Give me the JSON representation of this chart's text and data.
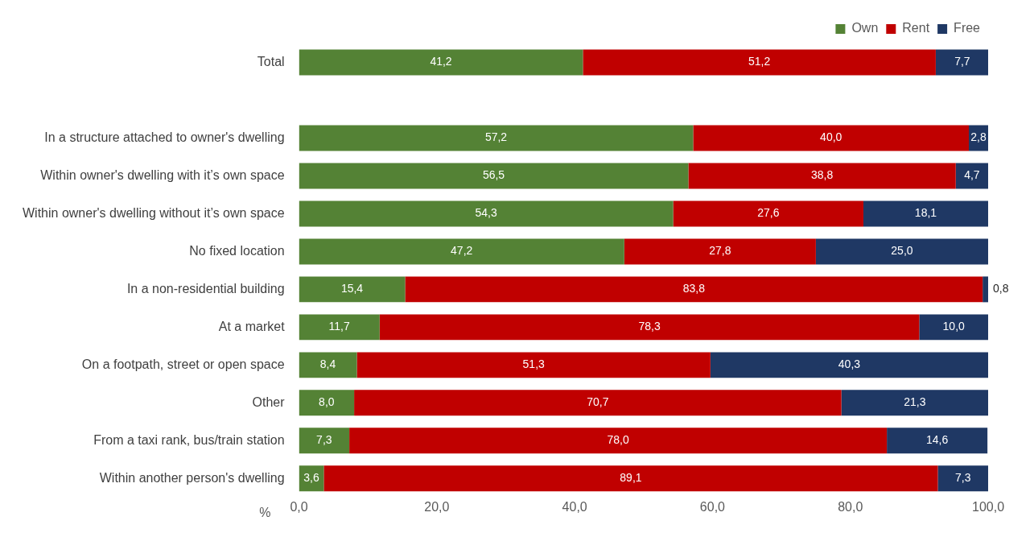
{
  "chart_data": {
    "type": "bar",
    "orientation": "horizontal",
    "stacked": true,
    "categories": [
      "Total",
      null,
      "In a structure attached to owner's dwelling",
      "Within owner's dwelling with it’s own space",
      "Within owner's dwelling without it’s own space",
      "No fixed location",
      "In a non-residential building",
      "At a market",
      "On a footpath, street or open space",
      "Other",
      "From a taxi rank, bus/train station",
      "Within another person's dwelling"
    ],
    "series": [
      {
        "name": "Own",
        "color": "#548235",
        "values": [
          41.2,
          null,
          57.2,
          56.5,
          54.3,
          47.2,
          15.4,
          11.7,
          8.4,
          8.0,
          7.3,
          3.6
        ],
        "value_labels": [
          "41,2",
          null,
          "57,2",
          "56,5",
          "54,3",
          "47,2",
          "15,4",
          "11,7",
          "8,4",
          "8,0",
          "7,3",
          "3,6"
        ]
      },
      {
        "name": "Rent",
        "color": "#c00000",
        "values": [
          51.2,
          null,
          40.0,
          38.8,
          27.6,
          27.8,
          83.8,
          78.3,
          51.3,
          70.7,
          78.0,
          89.1
        ],
        "value_labels": [
          "51,2",
          null,
          "40,0",
          "38,8",
          "27,6",
          "27,8",
          "83,8",
          "78,3",
          "51,3",
          "70,7",
          "78,0",
          "89,1"
        ]
      },
      {
        "name": "Free",
        "color": "#1f3864",
        "values": [
          7.7,
          null,
          2.8,
          4.7,
          18.1,
          25.0,
          0.8,
          10.0,
          40.3,
          21.3,
          14.6,
          7.3
        ],
        "value_labels": [
          "7,7",
          null,
          "2,8",
          "4,7",
          "18,1",
          "25,0",
          "0,8",
          "10,0",
          "40,3",
          "21,3",
          "14,6",
          "7,3"
        ]
      }
    ],
    "xlabel": "%",
    "xlim": [
      0,
      100
    ],
    "xticks": [
      {
        "value": 0,
        "label": "0,0"
      },
      {
        "value": 20,
        "label": "20,0"
      },
      {
        "value": 40,
        "label": "40,0"
      },
      {
        "value": 60,
        "label": "60,0"
      },
      {
        "value": 80,
        "label": "80,0"
      },
      {
        "value": 100,
        "label": "100,0"
      }
    ],
    "grid": false,
    "legend": "top right"
  }
}
